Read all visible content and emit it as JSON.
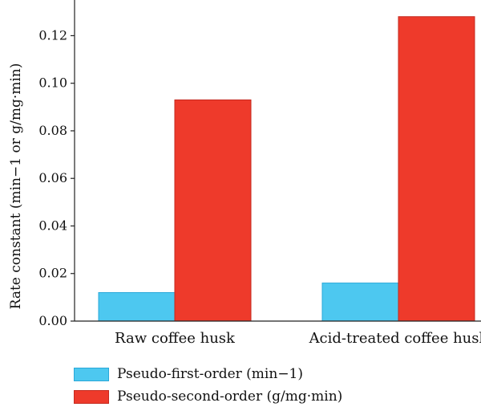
{
  "chart_data": {
    "type": "bar",
    "categories": [
      "Raw coffee husk",
      "Acid-treated coffee husk"
    ],
    "series": [
      {
        "name": "Pseudo-first-order (min−1)",
        "values": [
          0.012,
          0.016
        ],
        "color": "#4dc8f0",
        "edge": "#2aa8d8"
      },
      {
        "name": "Pseudo-second-order (g/mg·min)",
        "values": [
          0.093,
          0.128
        ],
        "color": "#ee3a2b",
        "edge": "#c42a1f"
      }
    ],
    "ylabel": "Rate constant (min−1 or g/mg·min)",
    "xlabel": "",
    "ylim": [
      0,
      0.135
    ],
    "yticks": [
      "0.00",
      "0.02",
      "0.04",
      "0.06",
      "0.08",
      "0.10",
      "0.12"
    ],
    "grid": false,
    "legend_position": "bottom-left"
  }
}
